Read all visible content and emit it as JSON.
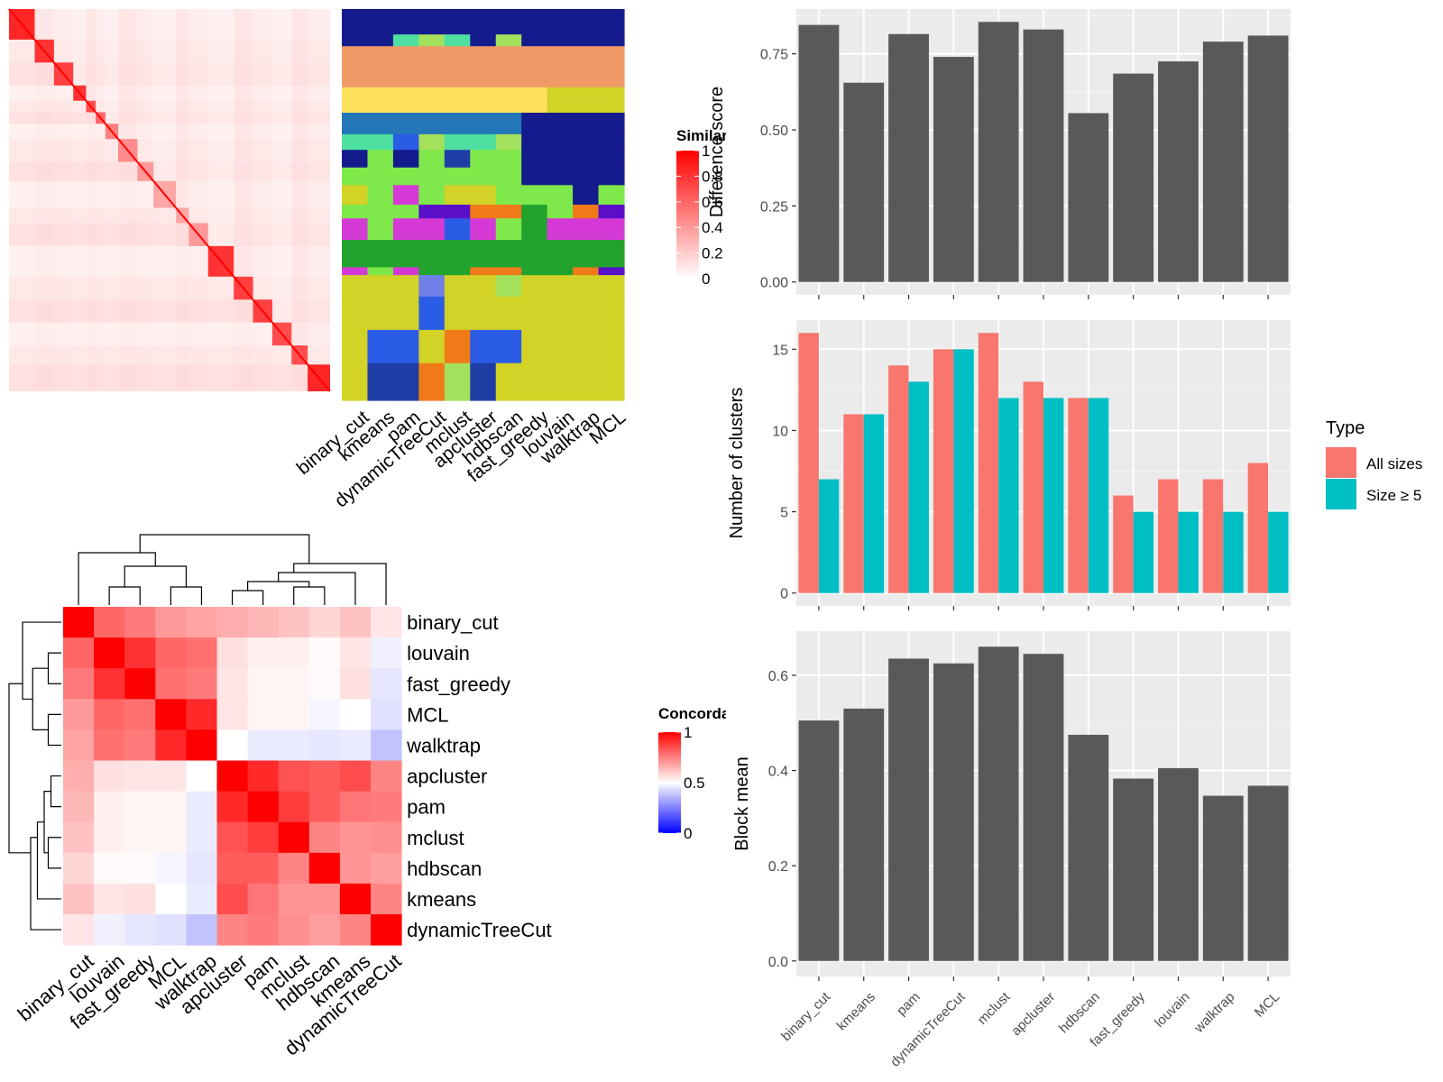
{
  "chart_data": [
    {
      "type": "heatmap",
      "id": "similarity-heatmap",
      "legend_title": "Similarity",
      "legend_ticks": [
        1,
        0.8,
        0.6,
        0.4,
        0.2,
        0
      ],
      "legend_colors": [
        "#ffffff",
        "#ff0000"
      ],
      "blocks": [
        [
          0,
          0.08,
          0.85
        ],
        [
          0.08,
          0.14,
          0.8
        ],
        [
          0.14,
          0.2,
          0.75
        ],
        [
          0.2,
          0.24,
          0.8
        ],
        [
          0.24,
          0.27,
          0.7
        ],
        [
          0.27,
          0.3,
          0.6
        ],
        [
          0.3,
          0.34,
          0.5
        ],
        [
          0.34,
          0.4,
          0.45
        ],
        [
          0.4,
          0.45,
          0.4
        ],
        [
          0.45,
          0.52,
          0.35
        ],
        [
          0.52,
          0.56,
          0.35
        ],
        [
          0.56,
          0.62,
          0.4
        ],
        [
          0.62,
          0.7,
          0.8
        ],
        [
          0.7,
          0.76,
          0.75
        ],
        [
          0.76,
          0.82,
          0.75
        ],
        [
          0.82,
          0.88,
          0.7
        ],
        [
          0.88,
          0.93,
          0.7
        ],
        [
          0.93,
          1,
          0.85
        ]
      ]
    },
    {
      "type": "heatmap",
      "id": "membership-heatmap",
      "columns": [
        "binary_cut",
        "kmeans",
        "pam",
        "dynamicTreeCut",
        "mclust",
        "apcluster",
        "hdbscan",
        "fast_greedy",
        "louvain",
        "walktrap",
        "MCL"
      ],
      "palette": {
        "navy": "#141b8c",
        "salmon": "#f09a68",
        "yellow": "#fde05c",
        "steel": "#2376b7",
        "lime": "#7fe84a",
        "olive": "#d2d227",
        "green": "#21a32e",
        "blue": "#2b5ce6",
        "darkblue": "#1f3ea5",
        "orange": "#f07a18",
        "purple": "#5a0fc8",
        "magenta": "#d63ad6",
        "teal": "#4ee0a0",
        "lightgreen": "#a3e05c",
        "periwinkle": "#6f7fe8"
      },
      "bands": [
        {
          "from": 0,
          "to": 0.065,
          "cells": [
            "navy",
            "navy",
            "navy",
            "navy",
            "navy",
            "navy",
            "navy",
            "navy",
            "navy",
            "navy",
            "navy"
          ]
        },
        {
          "from": 0.065,
          "to": 0.095,
          "cells": [
            "navy",
            "navy",
            "teal",
            "lightgreen",
            "teal",
            "navy",
            "lightgreen",
            "navy",
            "navy",
            "navy",
            "navy"
          ]
        },
        {
          "from": 0.095,
          "to": 0.2,
          "cells": [
            "salmon",
            "salmon",
            "salmon",
            "salmon",
            "salmon",
            "salmon",
            "salmon",
            "salmon",
            "salmon",
            "salmon",
            "salmon"
          ]
        },
        {
          "from": 0.2,
          "to": 0.265,
          "cells": [
            "yellow",
            "yellow",
            "yellow",
            "yellow",
            "yellow",
            "yellow",
            "yellow",
            "yellow",
            "olive",
            "olive",
            "olive"
          ]
        },
        {
          "from": 0.265,
          "to": 0.32,
          "cells": [
            "steel",
            "steel",
            "steel",
            "steel",
            "steel",
            "steel",
            "steel",
            "navy",
            "navy",
            "navy",
            "navy"
          ]
        },
        {
          "from": 0.32,
          "to": 0.36,
          "cells": [
            "teal",
            "teal",
            "blue",
            "lightgreen",
            "teal",
            "teal",
            "lightgreen",
            "navy",
            "navy",
            "navy",
            "navy"
          ]
        },
        {
          "from": 0.36,
          "to": 0.405,
          "cells": [
            "navy",
            "lime",
            "navy",
            "lime",
            "darkblue",
            "lime",
            "lime",
            "navy",
            "navy",
            "navy",
            "navy"
          ]
        },
        {
          "from": 0.405,
          "to": 0.45,
          "cells": [
            "lime",
            "lime",
            "lime",
            "lime",
            "lime",
            "lime",
            "lime",
            "navy",
            "navy",
            "navy",
            "navy"
          ]
        },
        {
          "from": 0.45,
          "to": 0.5,
          "cells": [
            "olive",
            "lime",
            "magenta",
            "lime",
            "olive",
            "olive",
            "lime",
            "lime",
            "lime",
            "navy",
            "lime"
          ]
        },
        {
          "from": 0.5,
          "to": 0.535,
          "cells": [
            "lime",
            "lime",
            "lime",
            "purple",
            "purple",
            "orange",
            "orange",
            "green",
            "lime",
            "orange",
            "purple"
          ]
        },
        {
          "from": 0.535,
          "to": 0.59,
          "cells": [
            "magenta",
            "lime",
            "magenta",
            "magenta",
            "blue",
            "magenta",
            "lime",
            "green",
            "magenta",
            "magenta",
            "magenta"
          ]
        },
        {
          "from": 0.59,
          "to": 0.66,
          "cells": [
            "green",
            "green",
            "green",
            "green",
            "green",
            "green",
            "green",
            "green",
            "green",
            "green",
            "green"
          ]
        },
        {
          "from": 0.66,
          "to": 0.68,
          "cells": [
            "magenta",
            "lime",
            "magenta",
            "green",
            "green",
            "orange",
            "orange",
            "green",
            "green",
            "orange",
            "purple"
          ]
        },
        {
          "from": 0.68,
          "to": 0.735,
          "cells": [
            "olive",
            "olive",
            "olive",
            "periwinkle",
            "olive",
            "olive",
            "lightgreen",
            "olive",
            "olive",
            "olive",
            "olive"
          ]
        },
        {
          "from": 0.735,
          "to": 0.82,
          "cells": [
            "olive",
            "olive",
            "olive",
            "blue",
            "olive",
            "olive",
            "olive",
            "olive",
            "olive",
            "olive",
            "olive"
          ]
        },
        {
          "from": 0.82,
          "to": 0.905,
          "cells": [
            "olive",
            "blue",
            "blue",
            "olive",
            "orange",
            "blue",
            "blue",
            "olive",
            "olive",
            "olive",
            "olive"
          ]
        },
        {
          "from": 0.905,
          "to": 1,
          "cells": [
            "olive",
            "darkblue",
            "darkblue",
            "orange",
            "lightgreen",
            "darkblue",
            "olive",
            "olive",
            "olive",
            "olive",
            "olive"
          ]
        }
      ]
    },
    {
      "type": "heatmap",
      "id": "concordance-heatmap",
      "legend_title": "Concordance",
      "legend_ticks": [
        1,
        0.5,
        0
      ],
      "legend_colors": [
        "#0000ff",
        "#ffffff",
        "#ff0000"
      ],
      "rows": [
        "binary_cut",
        "louvain",
        "fast_greedy",
        "MCL",
        "walktrap",
        "apcluster",
        "pam",
        "mclust",
        "hdbscan",
        "kmeans",
        "dynamicTreeCut"
      ],
      "columns": [
        "binary_cut",
        "louvain",
        "fast_greedy",
        "MCL",
        "walktrap",
        "apcluster",
        "pam",
        "mclust",
        "hdbscan",
        "kmeans",
        "dynamicTreeCut"
      ],
      "values": [
        [
          1.0,
          0.8,
          0.76,
          0.7,
          0.68,
          0.66,
          0.64,
          0.62,
          0.58,
          0.62,
          0.55
        ],
        [
          0.8,
          1.0,
          0.9,
          0.8,
          0.78,
          0.56,
          0.53,
          0.53,
          0.51,
          0.55,
          0.47
        ],
        [
          0.76,
          0.9,
          1.0,
          0.78,
          0.76,
          0.55,
          0.52,
          0.52,
          0.51,
          0.56,
          0.45
        ],
        [
          0.7,
          0.8,
          0.78,
          1.0,
          0.92,
          0.55,
          0.52,
          0.52,
          0.48,
          0.5,
          0.44
        ],
        [
          0.68,
          0.78,
          0.76,
          0.92,
          1.0,
          0.5,
          0.46,
          0.46,
          0.45,
          0.46,
          0.38
        ],
        [
          0.66,
          0.56,
          0.55,
          0.55,
          0.5,
          1.0,
          0.92,
          0.84,
          0.82,
          0.85,
          0.74
        ],
        [
          0.64,
          0.53,
          0.52,
          0.52,
          0.46,
          0.92,
          1.0,
          0.88,
          0.82,
          0.77,
          0.76
        ],
        [
          0.62,
          0.53,
          0.52,
          0.52,
          0.46,
          0.84,
          0.88,
          1.0,
          0.74,
          0.71,
          0.72
        ],
        [
          0.58,
          0.51,
          0.51,
          0.48,
          0.45,
          0.82,
          0.82,
          0.74,
          1.0,
          0.71,
          0.69
        ],
        [
          0.62,
          0.55,
          0.56,
          0.5,
          0.46,
          0.85,
          0.77,
          0.71,
          0.71,
          1.0,
          0.74
        ],
        [
          0.55,
          0.47,
          0.45,
          0.44,
          0.38,
          0.74,
          0.76,
          0.72,
          0.69,
          0.74,
          1.0
        ]
      ]
    },
    {
      "type": "bar",
      "id": "difference-score",
      "categories": [
        "binary_cut",
        "kmeans",
        "pam",
        "dynamicTreeCut",
        "mclust",
        "apcluster",
        "hdbscan",
        "fast_greedy",
        "louvain",
        "walktrap",
        "MCL"
      ],
      "values": [
        0.845,
        0.655,
        0.815,
        0.74,
        0.855,
        0.83,
        0.555,
        0.685,
        0.725,
        0.79,
        0.81
      ],
      "ylabel": "Difference score",
      "ylim": [
        0,
        0.855
      ],
      "yticks": [
        0.0,
        0.25,
        0.5,
        0.75
      ],
      "grid": true
    },
    {
      "type": "bar",
      "id": "number-of-clusters",
      "categories": [
        "binary_cut",
        "kmeans",
        "pam",
        "dynamicTreeCut",
        "mclust",
        "apcluster",
        "hdbscan",
        "fast_greedy",
        "louvain",
        "walktrap",
        "MCL"
      ],
      "series": [
        {
          "name": "All sizes",
          "values": [
            16,
            11,
            14,
            15,
            16,
            13,
            12,
            6,
            7,
            7,
            8
          ],
          "color": "#f8766d"
        },
        {
          "name": "Size ≥ 5",
          "values": [
            7,
            11,
            13,
            15,
            12,
            12,
            12,
            5,
            5,
            5,
            5
          ],
          "color": "#00bfc4"
        }
      ],
      "ylabel": "Number of clusters",
      "ylim": [
        0,
        16
      ],
      "yticks": [
        0,
        5,
        10,
        15
      ],
      "legend_title": "Type",
      "legend_position": "right",
      "grid": true
    },
    {
      "type": "bar",
      "id": "block-mean",
      "categories": [
        "binary_cut",
        "kmeans",
        "pam",
        "dynamicTreeCut",
        "mclust",
        "apcluster",
        "hdbscan",
        "fast_greedy",
        "louvain",
        "walktrap",
        "MCL"
      ],
      "values": [
        0.505,
        0.53,
        0.635,
        0.625,
        0.66,
        0.645,
        0.475,
        0.383,
        0.405,
        0.347,
        0.368
      ],
      "ylabel": "Block mean",
      "ylim": [
        0,
        0.66
      ],
      "yticks": [
        0.0,
        0.2,
        0.4,
        0.6
      ],
      "grid": true
    }
  ]
}
